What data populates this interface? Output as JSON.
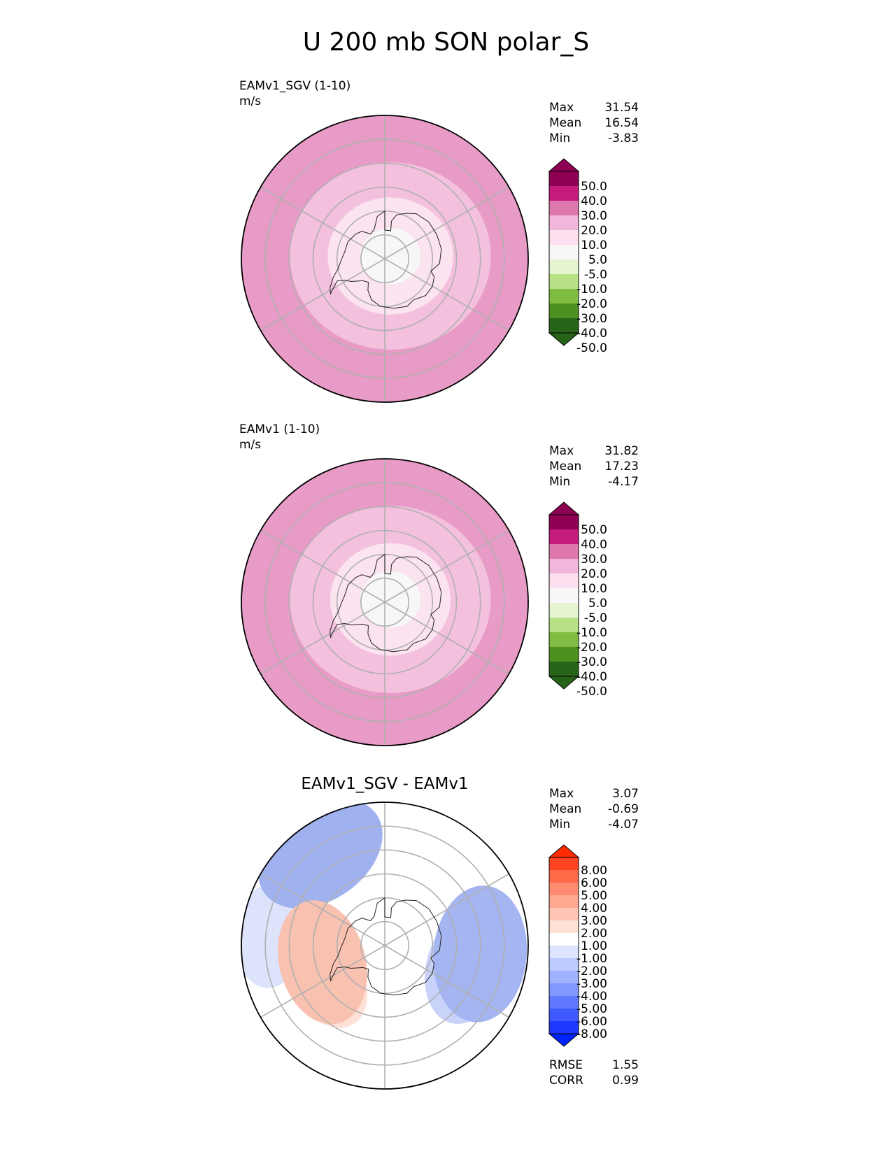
{
  "title": "U 200 mb SON polar_S",
  "panels": [
    {
      "id": "test",
      "name": "EAMv1_SGV (1-10)",
      "units": "m/s",
      "stats": [
        {
          "label": "Max",
          "value": "31.54"
        },
        {
          "label": "Mean",
          "value": "16.54"
        },
        {
          "label": "Min",
          "value": "-3.83"
        }
      ],
      "colorbar": {
        "labels": [
          "50.0",
          "40.0",
          "30.0",
          "20.0",
          "10.0",
          "5.0",
          "-5.0",
          "-10.0",
          "-20.0",
          "-30.0",
          "-40.0",
          "-50.0"
        ],
        "colors": [
          "#8e0152",
          "#c51b7d",
          "#de77ae",
          "#f1b6da",
          "#fde0ef",
          "#f7f7f7",
          "#e6f5d0",
          "#b8e186",
          "#7fbc41",
          "#4d9221",
          "#276419"
        ],
        "over": "#8e0152",
        "under": "#276419"
      },
      "rings": [
        {
          "lat": -40,
          "u": 22,
          "color": "#e89bc6"
        },
        {
          "lat": -50,
          "u": 17,
          "color": "#f3c1dd"
        },
        {
          "lat": -65,
          "u": 11,
          "color": "#fbe3ef"
        },
        {
          "lat": -78,
          "u": 2,
          "color": "#f7f7f7"
        }
      ]
    },
    {
      "id": "ref",
      "name": "EAMv1 (1-10)",
      "units": "m/s",
      "stats": [
        {
          "label": "Max",
          "value": "31.82"
        },
        {
          "label": "Mean",
          "value": "17.23"
        },
        {
          "label": "Min",
          "value": "-4.17"
        }
      ],
      "colorbar": {
        "labels": [
          "50.0",
          "40.0",
          "30.0",
          "20.0",
          "10.0",
          "5.0",
          "-5.0",
          "-10.0",
          "-20.0",
          "-30.0",
          "-40.0",
          "-50.0"
        ],
        "colors": [
          "#8e0152",
          "#c51b7d",
          "#de77ae",
          "#f1b6da",
          "#fde0ef",
          "#f7f7f7",
          "#e6f5d0",
          "#b8e186",
          "#7fbc41",
          "#4d9221",
          "#276419"
        ],
        "over": "#8e0152",
        "under": "#276419"
      },
      "rings": [
        {
          "lat": -40,
          "u": 23,
          "color": "#e89bc6"
        },
        {
          "lat": -50,
          "u": 18,
          "color": "#f3c1dd"
        },
        {
          "lat": -66,
          "u": 11,
          "color": "#fbe3ef"
        },
        {
          "lat": -78,
          "u": 2,
          "color": "#f7f7f7"
        }
      ]
    },
    {
      "id": "diff",
      "name": "EAMv1_SGV - EAMv1",
      "stats": [
        {
          "label": "Max",
          "value": "3.07"
        },
        {
          "label": "Mean",
          "value": "-0.69"
        },
        {
          "label": "Min",
          "value": "-4.07"
        }
      ],
      "metrics": [
        {
          "label": "RMSE",
          "value": "1.55"
        },
        {
          "label": "CORR",
          "value": "0.99"
        }
      ],
      "colorbar": {
        "labels": [
          "8.00",
          "6.00",
          "5.00",
          "4.00",
          "3.00",
          "2.00",
          "1.00",
          "-1.00",
          "-2.00",
          "-3.00",
          "-4.00",
          "-5.00",
          "-6.00",
          "-8.00"
        ],
        "colors": [
          "#ff4422",
          "#ff6a48",
          "#ff8b70",
          "#ffa892",
          "#ffc4b4",
          "#ffe0d6",
          "#ffffff",
          "#dde4ff",
          "#bccaff",
          "#9fb2ff",
          "#8098ff",
          "#6079ff",
          "#3f59ff",
          "#1f38ff"
        ],
        "over": "#ff2a00",
        "under": "#0022ff"
      },
      "blobs": [
        {
          "lat": -42,
          "lon": -95,
          "u": -2.0,
          "color": "#dce3fb"
        },
        {
          "lat": -45,
          "lon": -148,
          "u": -2.5,
          "color": "#c9d3fa"
        },
        {
          "lat": -43,
          "lon": -145,
          "u": -3.5,
          "color": "#9fb2ef"
        },
        {
          "lat": -55,
          "lon": 75,
          "u": -2.5,
          "color": "#c9d3fa"
        },
        {
          "lat": -50,
          "lon": 85,
          "u": -3.5,
          "color": "#a4b5f2"
        },
        {
          "lat": -62,
          "lon": -60,
          "u": 2.0,
          "color": "#fde0d6"
        },
        {
          "lat": -63,
          "lon": -75,
          "u": 3.0,
          "color": "#f9c1b0"
        }
      ]
    }
  ]
}
